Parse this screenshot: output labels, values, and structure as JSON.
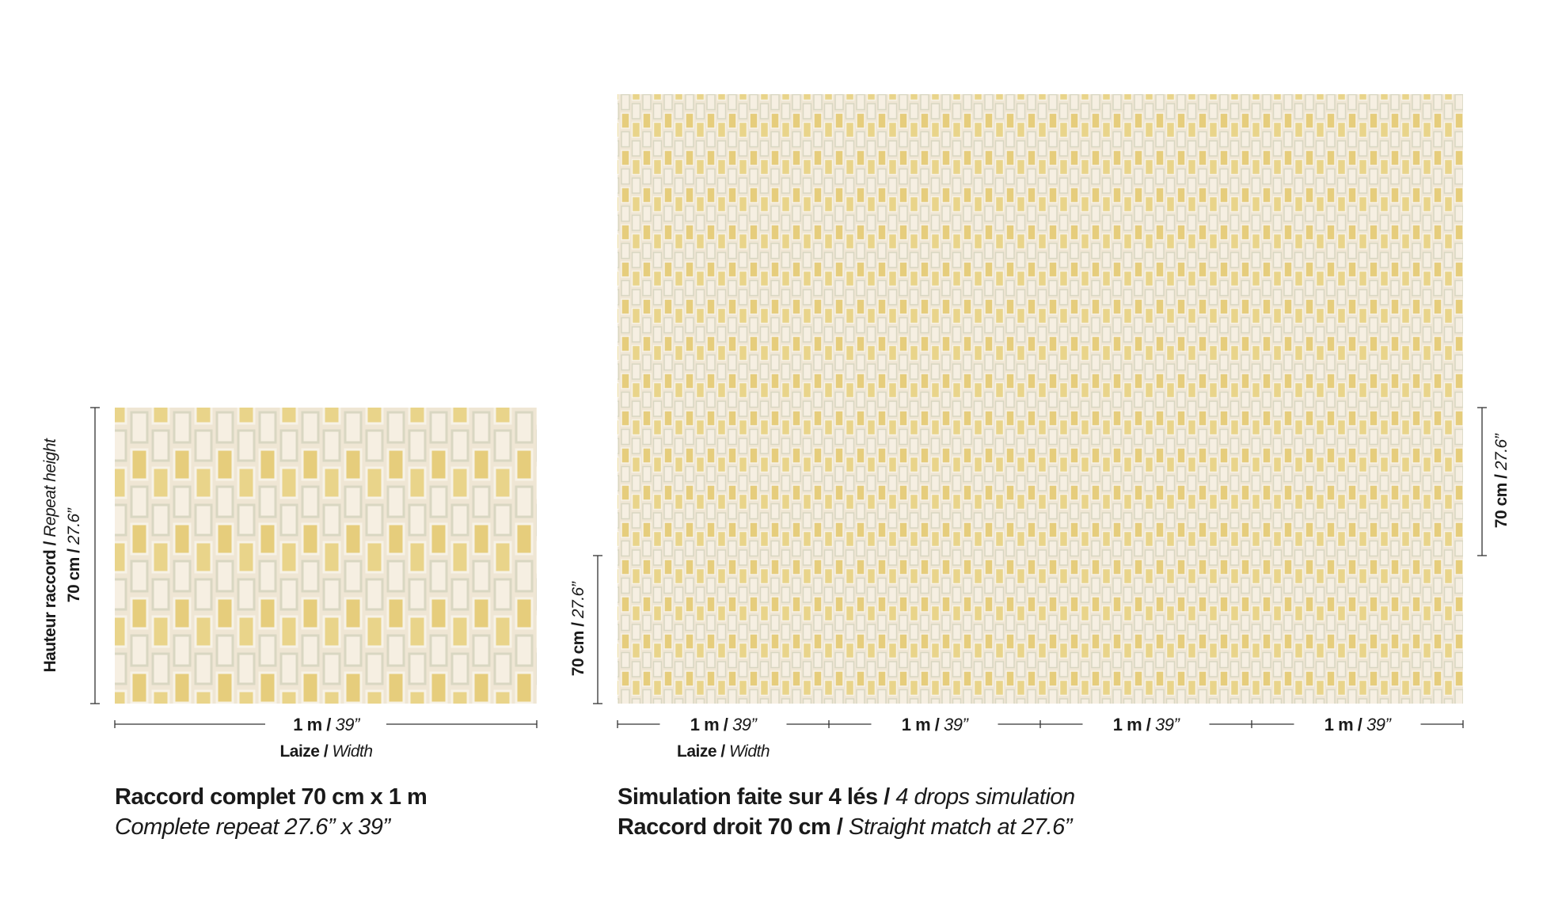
{
  "sample": {
    "height_label": "Hauteur raccord /",
    "height_label_en": "Repeat height",
    "height_value": "70 cm /",
    "height_value_en": "27.6”",
    "width_value": "1 m /",
    "width_value_en": "39”",
    "width_label": "Laize /",
    "width_label_en": "Width",
    "caption": "Raccord complet 70 cm x 1 m",
    "caption_en": "Complete repeat 27.6” x 39”"
  },
  "simulation": {
    "height_value": "70 cm /",
    "height_value_en": "27.6”",
    "drops": [
      {
        "value": "1 m /",
        "value_en": "39”"
      },
      {
        "value": "1 m /",
        "value_en": "39”"
      },
      {
        "value": "1 m /",
        "value_en": "39”"
      },
      {
        "value": "1 m /",
        "value_en": "39”"
      }
    ],
    "width_label": "Laize /",
    "width_label_en": "Width",
    "caption": "Simulation faite sur 4 lés /",
    "caption_en": "4 drops simulation",
    "caption2": "Raccord droit 70 cm /",
    "caption2_en": "Straight match at 27.6”"
  }
}
